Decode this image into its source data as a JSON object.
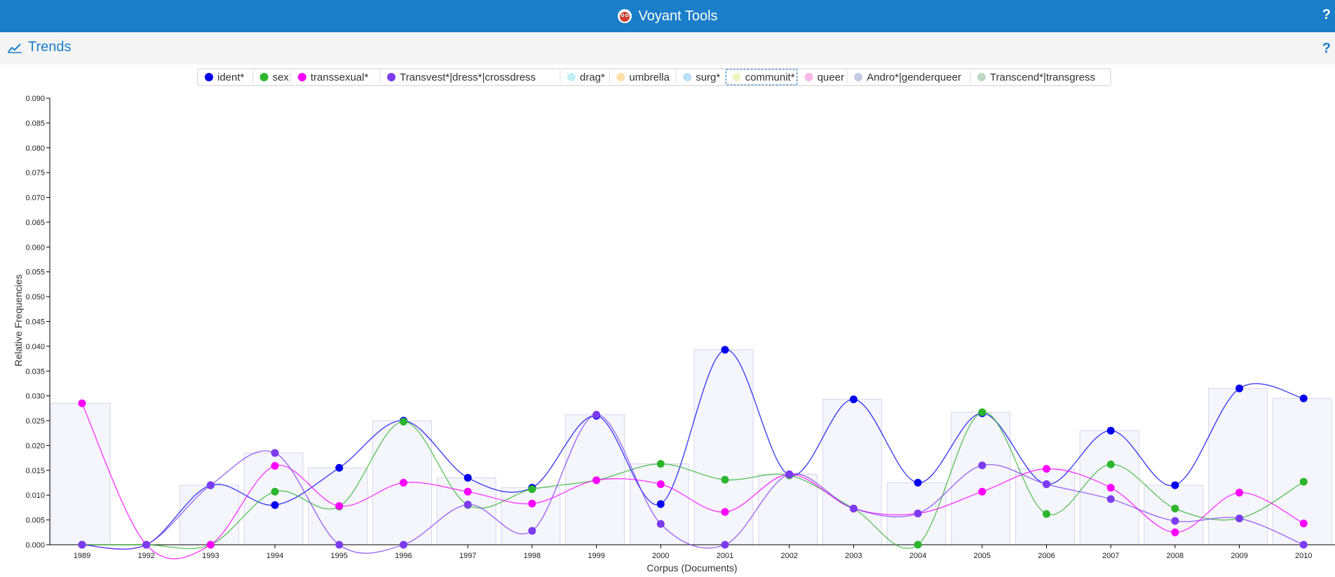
{
  "app": {
    "title": "Voyant Tools",
    "help": "?"
  },
  "panel": {
    "title": "Trends",
    "help": "?"
  },
  "colors": {
    "header_bg": "#1a7ec9",
    "panel_bg": "#f4f4f4",
    "accent": "#1a7ec9"
  },
  "chart_data": {
    "type": "line",
    "xlabel": "Corpus (Documents)",
    "ylabel": "Relative Frequencies",
    "ylim": [
      0,
      0.09
    ],
    "ytick_step": 0.005,
    "grid": false,
    "legend_position": "top",
    "categories": [
      "1989",
      "1992",
      "1993",
      "1994",
      "1995",
      "1996",
      "1997",
      "1998",
      "1999",
      "2000",
      "2001",
      "2002",
      "2003",
      "2004",
      "2005",
      "2006",
      "2007",
      "2008",
      "2009",
      "2010"
    ],
    "series": [
      {
        "name": "ident*",
        "color": "#0000ee",
        "visible": true,
        "values": [
          0,
          0,
          0.012,
          0.008,
          0.0155,
          0.025,
          0.0135,
          0.0115,
          0.026,
          0.0082,
          0.0393,
          0.014,
          0.0293,
          0.0125,
          0.0265,
          0.0122,
          0.023,
          0.012,
          0.0315,
          0.0295
        ]
      },
      {
        "name": "sex",
        "color": "#2db52d",
        "visible": true,
        "values": [
          0,
          0,
          0,
          0.0107,
          0.0077,
          0.0248,
          0.008,
          0.0112,
          0.013,
          0.0163,
          0.0131,
          0.014,
          0.0073,
          0,
          0.0267,
          0.0062,
          0.0162,
          0.0073,
          0.0053,
          0.0127
        ]
      },
      {
        "name": "transsexual*",
        "color": "#ff00ff",
        "visible": true,
        "values": [
          0.0285,
          0,
          0,
          0.0159,
          0.0078,
          0.0125,
          0.0107,
          0.0083,
          0.013,
          0.0122,
          0.0066,
          0.0142,
          0.0073,
          0.0063,
          0.0107,
          0.0153,
          0.0115,
          0.0025,
          0.0105,
          0.0043
        ]
      },
      {
        "name": "Transvest*|dress*|crossdress",
        "color": "#7b3cf0",
        "visible": true,
        "values": [
          0,
          0,
          0.012,
          0.0185,
          0,
          0,
          0.0081,
          0.0028,
          0.0262,
          0.0042,
          0,
          0.0142,
          0.0073,
          0.0063,
          0.016,
          0.0122,
          0.0092,
          0.0048,
          0.0053,
          0
        ]
      },
      {
        "name": "drag*",
        "color": "#bfeff5",
        "visible": false
      },
      {
        "name": "umbrella",
        "color": "#fde0a8",
        "visible": false
      },
      {
        "name": "surg*",
        "color": "#b8e0f7",
        "visible": false
      },
      {
        "name": "communit*",
        "color": "#eef5c2",
        "visible": false
      },
      {
        "name": "queer",
        "color": "#f7b8e6",
        "visible": false
      },
      {
        "name": "Andro*|genderqueer",
        "color": "#c2cbe0",
        "visible": false
      },
      {
        "name": "Transcend*|transgress",
        "color": "#bcd9c2",
        "visible": false
      }
    ]
  }
}
